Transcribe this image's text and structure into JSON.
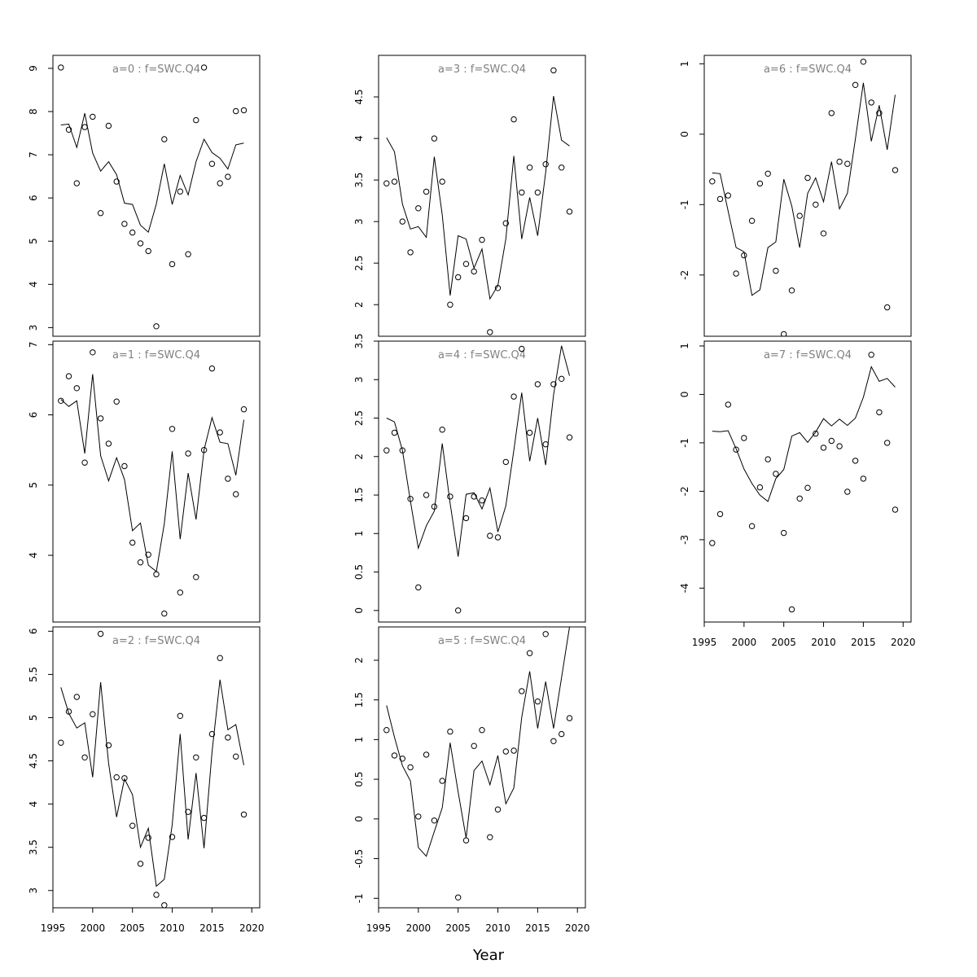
{
  "figure": {
    "xlabel": "Year"
  },
  "chart_data": [
    {
      "type": "scatter",
      "title": "a=0  :  f=SWC.Q4",
      "xlim": [
        1995,
        2021
      ],
      "ylim": [
        2.8,
        9.3
      ],
      "yticks": [
        3,
        4,
        5,
        6,
        7,
        8,
        9
      ],
      "xticks": [
        1995,
        2000,
        2005,
        2010,
        2015,
        2020
      ],
      "show_xticks": false,
      "series": [
        {
          "kind": "points",
          "x": [
            1996,
            1997,
            1998,
            1999,
            2000,
            2001,
            2002,
            2003,
            2004,
            2005,
            2006,
            2007,
            2008,
            2009,
            2010,
            2011,
            2012,
            2013,
            2014,
            2015,
            2016,
            2017,
            2018,
            2019
          ],
          "y": [
            9.02,
            7.58,
            6.34,
            7.64,
            7.88,
            5.65,
            7.67,
            6.38,
            5.4,
            5.2,
            4.95,
            4.77,
            3.03,
            7.36,
            4.47,
            6.15,
            4.7,
            7.8,
            9.02,
            6.79,
            6.34,
            6.49,
            8.01,
            8.03
          ]
        },
        {
          "kind": "line",
          "x": [
            1996,
            1997,
            1998,
            1999,
            2000,
            2001,
            2002,
            2003,
            2004,
            2005,
            2006,
            2007,
            2008,
            2009,
            2010,
            2011,
            2012,
            2013,
            2014,
            2015,
            2016,
            2017,
            2018,
            2019
          ],
          "y": [
            7.69,
            7.71,
            7.17,
            7.96,
            7.04,
            6.62,
            6.84,
            6.54,
            5.88,
            5.85,
            5.37,
            5.21,
            5.86,
            6.79,
            5.85,
            6.52,
            6.07,
            6.84,
            7.36,
            7.05,
            6.92,
            6.67,
            7.23,
            7.27
          ]
        }
      ]
    },
    {
      "type": "scatter",
      "title": "a=1  :  f=SWC.Q4",
      "xlim": [
        1995,
        2021
      ],
      "ylim": [
        3.05,
        7.05
      ],
      "yticks": [
        4,
        5,
        6,
        7
      ],
      "xticks": [
        1995,
        2000,
        2005,
        2010,
        2015,
        2020
      ],
      "show_xticks": false,
      "series": [
        {
          "kind": "points",
          "x": [
            1996,
            1997,
            1998,
            1999,
            2000,
            2001,
            2002,
            2003,
            2004,
            2005,
            2006,
            2007,
            2008,
            2009,
            2010,
            2011,
            2012,
            2013,
            2014,
            2015,
            2016,
            2017,
            2018,
            2019
          ],
          "y": [
            6.2,
            6.55,
            6.38,
            5.32,
            6.89,
            5.95,
            5.59,
            6.19,
            5.27,
            4.18,
            3.9,
            4.01,
            3.73,
            3.17,
            5.8,
            3.47,
            5.45,
            3.69,
            5.5,
            6.66,
            5.75,
            5.09,
            4.87,
            6.08
          ]
        },
        {
          "kind": "line",
          "x": [
            1996,
            1997,
            1998,
            1999,
            2000,
            2001,
            2002,
            2003,
            2004,
            2005,
            2006,
            2007,
            2008,
            2009,
            2010,
            2011,
            2012,
            2013,
            2014,
            2015,
            2016,
            2017,
            2018,
            2019
          ],
          "y": [
            6.22,
            6.12,
            6.2,
            5.45,
            6.58,
            5.42,
            5.06,
            5.39,
            5.08,
            4.35,
            4.46,
            3.86,
            3.77,
            4.45,
            5.48,
            4.23,
            5.17,
            4.51,
            5.5,
            5.96,
            5.61,
            5.59,
            5.14,
            5.93
          ]
        }
      ]
    },
    {
      "type": "scatter",
      "title": "a=2  :  f=SWC.Q4",
      "xlim": [
        1995,
        2021
      ],
      "ylim": [
        2.8,
        6.05
      ],
      "yticks": [
        3.0,
        3.5,
        4.0,
        4.5,
        5.0,
        5.5,
        6.0
      ],
      "xticks": [
        1995,
        2000,
        2005,
        2010,
        2015,
        2020
      ],
      "show_xticks": true,
      "series": [
        {
          "kind": "points",
          "x": [
            1996,
            1997,
            1998,
            1999,
            2000,
            2001,
            2002,
            2003,
            2004,
            2005,
            2006,
            2007,
            2008,
            2009,
            2010,
            2011,
            2012,
            2013,
            2014,
            2015,
            2016,
            2017,
            2018,
            2019
          ],
          "y": [
            4.71,
            5.07,
            5.24,
            4.54,
            5.04,
            5.97,
            4.68,
            4.31,
            4.3,
            3.75,
            3.31,
            3.61,
            2.95,
            2.83,
            3.62,
            5.02,
            3.91,
            4.54,
            3.84,
            4.81,
            5.69,
            4.77,
            4.55,
            3.88
          ]
        },
        {
          "kind": "line",
          "x": [
            1996,
            1997,
            1998,
            1999,
            2000,
            2001,
            2002,
            2003,
            2004,
            2005,
            2006,
            2007,
            2008,
            2009,
            2010,
            2011,
            2012,
            2013,
            2014,
            2015,
            2016,
            2017,
            2018,
            2019
          ],
          "y": [
            5.35,
            5.05,
            4.88,
            4.94,
            4.31,
            5.41,
            4.47,
            3.85,
            4.29,
            4.11,
            3.5,
            3.72,
            3.05,
            3.13,
            3.76,
            4.81,
            3.59,
            4.36,
            3.49,
            4.6,
            5.44,
            4.86,
            4.92,
            4.45
          ]
        }
      ]
    },
    {
      "type": "scatter",
      "title": "a=3  :  f=SWC.Q4",
      "xlim": [
        1995,
        2021
      ],
      "ylim": [
        1.62,
        5.0
      ],
      "yticks": [
        2.0,
        2.5,
        3.0,
        3.5,
        4.0,
        4.5
      ],
      "xticks": [
        1995,
        2000,
        2005,
        2010,
        2015,
        2020
      ],
      "show_xticks": false,
      "series": [
        {
          "kind": "points",
          "x": [
            1996,
            1997,
            1998,
            1999,
            2000,
            2001,
            2002,
            2003,
            2004,
            2005,
            2006,
            2007,
            2008,
            2009,
            2010,
            2011,
            2012,
            2013,
            2014,
            2015,
            2016,
            2017,
            2018,
            2019
          ],
          "y": [
            3.46,
            3.48,
            3.0,
            2.63,
            3.16,
            3.36,
            4.0,
            3.48,
            2.0,
            2.33,
            2.49,
            2.4,
            2.78,
            1.67,
            2.2,
            2.98,
            4.23,
            3.35,
            3.65,
            3.35,
            3.69,
            4.82,
            3.65,
            3.12
          ]
        },
        {
          "kind": "line",
          "x": [
            1996,
            1997,
            1998,
            1999,
            2000,
            2001,
            2002,
            2003,
            2004,
            2005,
            2006,
            2007,
            2008,
            2009,
            2010,
            2011,
            2012,
            2013,
            2014,
            2015,
            2016,
            2017,
            2018,
            2019
          ],
          "y": [
            4.01,
            3.84,
            3.21,
            2.91,
            2.94,
            2.81,
            3.78,
            3.08,
            2.11,
            2.83,
            2.79,
            2.44,
            2.67,
            2.07,
            2.23,
            2.79,
            3.79,
            2.79,
            3.29,
            2.83,
            3.59,
            4.51,
            3.98,
            3.91
          ]
        }
      ]
    },
    {
      "type": "scatter",
      "title": "a=4  :  f=SWC.Q4",
      "xlim": [
        1995,
        2021
      ],
      "ylim": [
        -0.15,
        3.5
      ],
      "yticks": [
        0.0,
        0.5,
        1.0,
        1.5,
        2.0,
        2.5,
        3.0,
        3.5
      ],
      "xticks": [
        1995,
        2000,
        2005,
        2010,
        2015,
        2020
      ],
      "show_xticks": false,
      "series": [
        {
          "kind": "points",
          "x": [
            1996,
            1997,
            1998,
            1999,
            2000,
            2001,
            2002,
            2003,
            2004,
            2005,
            2006,
            2007,
            2008,
            2009,
            2010,
            2011,
            2012,
            2013,
            2014,
            2015,
            2016,
            2017,
            2018,
            2019
          ],
          "y": [
            2.08,
            2.31,
            2.08,
            1.45,
            0.3,
            1.5,
            1.35,
            2.35,
            1.48,
            0.0,
            1.2,
            1.48,
            1.43,
            0.97,
            0.95,
            1.93,
            2.78,
            3.4,
            2.31,
            2.94,
            2.16,
            2.94,
            3.01,
            2.25
          ]
        },
        {
          "kind": "line",
          "x": [
            1996,
            1997,
            1998,
            1999,
            2000,
            2001,
            2002,
            2003,
            2004,
            2005,
            2006,
            2007,
            2008,
            2009,
            2010,
            2011,
            2012,
            2013,
            2014,
            2015,
            2016,
            2017,
            2018,
            2019
          ],
          "y": [
            2.5,
            2.45,
            2.08,
            1.42,
            0.81,
            1.1,
            1.29,
            2.17,
            1.39,
            0.7,
            1.51,
            1.53,
            1.32,
            1.59,
            1.02,
            1.36,
            2.08,
            2.83,
            1.94,
            2.5,
            1.89,
            2.8,
            3.44,
            3.05
          ]
        }
      ]
    },
    {
      "type": "scatter",
      "title": "a=5  :  f=SWC.Q4",
      "xlim": [
        1995,
        2021
      ],
      "ylim": [
        -1.12,
        2.42
      ],
      "yticks": [
        -1.0,
        -0.5,
        0.0,
        0.5,
        1.0,
        1.5,
        2.0
      ],
      "xticks": [
        1995,
        2000,
        2005,
        2010,
        2015,
        2020
      ],
      "show_xticks": true,
      "series": [
        {
          "kind": "points",
          "x": [
            1996,
            1997,
            1998,
            1999,
            2000,
            2001,
            2002,
            2003,
            2004,
            2005,
            2006,
            2007,
            2008,
            2009,
            2010,
            2011,
            2012,
            2013,
            2014,
            2015,
            2016,
            2017,
            2018,
            2019
          ],
          "y": [
            1.12,
            0.8,
            0.76,
            0.65,
            0.03,
            0.81,
            -0.02,
            0.48,
            1.1,
            -0.99,
            -0.27,
            0.92,
            1.12,
            -0.23,
            0.12,
            0.85,
            0.86,
            1.61,
            2.09,
            1.48,
            2.33,
            0.98,
            1.07,
            1.27
          ]
        },
        {
          "kind": "line",
          "x": [
            1996,
            1997,
            1998,
            1999,
            2000,
            2001,
            2002,
            2003,
            2004,
            2005,
            2006,
            2007,
            2008,
            2009,
            2010,
            2011,
            2012,
            2013,
            2014,
            2015,
            2016,
            2017,
            2018,
            2019
          ],
          "y": [
            1.43,
            1.03,
            0.67,
            0.48,
            -0.36,
            -0.47,
            -0.16,
            0.14,
            0.96,
            0.34,
            -0.24,
            0.61,
            0.73,
            0.43,
            0.8,
            0.19,
            0.39,
            1.28,
            1.86,
            1.14,
            1.73,
            1.14,
            1.78,
            2.42
          ]
        }
      ]
    },
    {
      "type": "scatter",
      "title": "a=6  :  f=SWC.Q4",
      "xlim": [
        1995,
        2021
      ],
      "ylim": [
        -2.87,
        1.12
      ],
      "yticks": [
        -2,
        -1,
        0,
        1
      ],
      "xticks": [
        1995,
        2000,
        2005,
        2010,
        2015,
        2020
      ],
      "show_xticks": false,
      "series": [
        {
          "kind": "points",
          "x": [
            1996,
            1997,
            1998,
            1999,
            2000,
            2001,
            2002,
            2003,
            2004,
            2005,
            2006,
            2007,
            2008,
            2009,
            2010,
            2011,
            2012,
            2013,
            2014,
            2015,
            2016,
            2017,
            2018,
            2019
          ],
          "y": [
            -0.67,
            -0.92,
            -0.87,
            -1.98,
            -1.72,
            -1.23,
            -0.7,
            -0.56,
            -1.94,
            -2.84,
            -2.22,
            -1.16,
            -0.62,
            -1.0,
            -1.41,
            0.3,
            -0.39,
            -0.42,
            0.7,
            1.03,
            0.45,
            0.3,
            -2.46,
            -0.51
          ]
        },
        {
          "kind": "line",
          "x": [
            1996,
            1997,
            1998,
            1999,
            2000,
            2001,
            2002,
            2003,
            2004,
            2005,
            2006,
            2007,
            2008,
            2009,
            2010,
            2011,
            2012,
            2013,
            2014,
            2015,
            2016,
            2017,
            2018,
            2019
          ],
          "y": [
            -0.55,
            -0.56,
            -1.09,
            -1.61,
            -1.67,
            -2.29,
            -2.21,
            -1.61,
            -1.53,
            -0.64,
            -1.02,
            -1.61,
            -0.84,
            -0.62,
            -0.96,
            -0.39,
            -1.06,
            -0.84,
            -0.07,
            0.73,
            -0.1,
            0.41,
            -0.22,
            0.56
          ]
        }
      ]
    },
    {
      "type": "scatter",
      "title": "a=7  :  f=SWC.Q4",
      "xlim": [
        1995,
        2021
      ],
      "ylim": [
        -4.7,
        1.1
      ],
      "yticks": [
        -4,
        -3,
        -2,
        -1,
        0,
        1
      ],
      "xticks": [
        1995,
        2000,
        2005,
        2010,
        2015,
        2020
      ],
      "show_xticks": true,
      "series": [
        {
          "kind": "points",
          "x": [
            1996,
            1997,
            1998,
            1999,
            2000,
            2001,
            2002,
            2003,
            2004,
            2005,
            2006,
            2007,
            2008,
            2009,
            2010,
            2011,
            2012,
            2013,
            2014,
            2015,
            2016,
            2017,
            2018,
            2019
          ],
          "y": [
            -3.07,
            -2.47,
            -0.21,
            -1.14,
            -0.9,
            -2.72,
            -1.92,
            -1.34,
            -1.64,
            -2.86,
            -4.44,
            -2.15,
            -1.93,
            -0.81,
            -1.1,
            -0.96,
            -1.07,
            -2.01,
            -1.37,
            -1.74,
            0.82,
            -0.37,
            -1.0,
            -2.38
          ]
        },
        {
          "kind": "line",
          "x": [
            1996,
            1997,
            1998,
            1999,
            2000,
            2001,
            2002,
            2003,
            2004,
            2005,
            2006,
            2007,
            2008,
            2009,
            2010,
            2011,
            2012,
            2013,
            2014,
            2015,
            2016,
            2017,
            2018,
            2019
          ],
          "y": [
            -0.76,
            -0.77,
            -0.75,
            -1.12,
            -1.54,
            -1.84,
            -2.08,
            -2.21,
            -1.74,
            -1.55,
            -0.86,
            -0.79,
            -0.99,
            -0.78,
            -0.5,
            -0.65,
            -0.51,
            -0.64,
            -0.49,
            -0.06,
            0.57,
            0.27,
            0.33,
            0.15
          ]
        }
      ]
    }
  ]
}
